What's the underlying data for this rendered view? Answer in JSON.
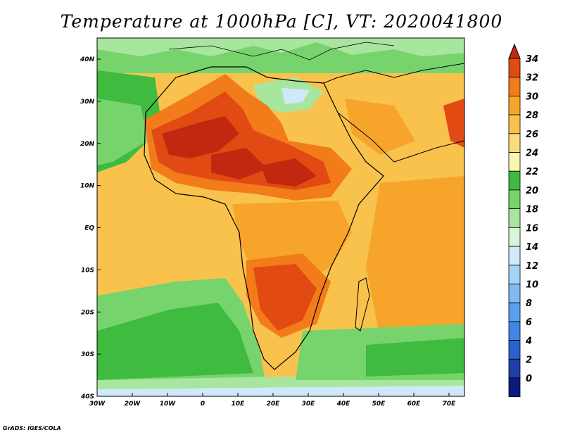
{
  "title": "Temperature at 1000hPa [C], VT: 2020041800",
  "credit": "GrADS: IGES/COLA",
  "lon_ticks": [
    "30W",
    "20W",
    "10W",
    "0",
    "10E",
    "20E",
    "30E",
    "40E",
    "50E",
    "60E",
    "70E"
  ],
  "lat_ticks": [
    "40N",
    "30N",
    "20N",
    "10N",
    "EQ",
    "10S",
    "20S",
    "30S",
    "40S"
  ],
  "colorbar": {
    "levels": [
      "0",
      "2",
      "4",
      "6",
      "8",
      "10",
      "12",
      "14",
      "16",
      "18",
      "20",
      "22",
      "24",
      "26",
      "28",
      "30",
      "32",
      "34"
    ],
    "colors": [
      "#0a1a80",
      "#1f3ea8",
      "#2b62d0",
      "#3f86e6",
      "#5aa0ee",
      "#7fbaf3",
      "#a6d3f8",
      "#cfe9fb",
      "#d9f5d9",
      "#a8e6a0",
      "#77d46d",
      "#3fbb3f",
      "#fbf5b2",
      "#f9dd7a",
      "#f8c24d",
      "#f7a52a",
      "#f27b1a",
      "#e24a14",
      "#c22810"
    ]
  },
  "fields": {
    "ocean_cool": "#3fbb3f",
    "ocean_warm": "#f7a52a",
    "land_hot": "#e24a14",
    "land_mild": "#f8c24d",
    "med": "#77d46d"
  }
}
